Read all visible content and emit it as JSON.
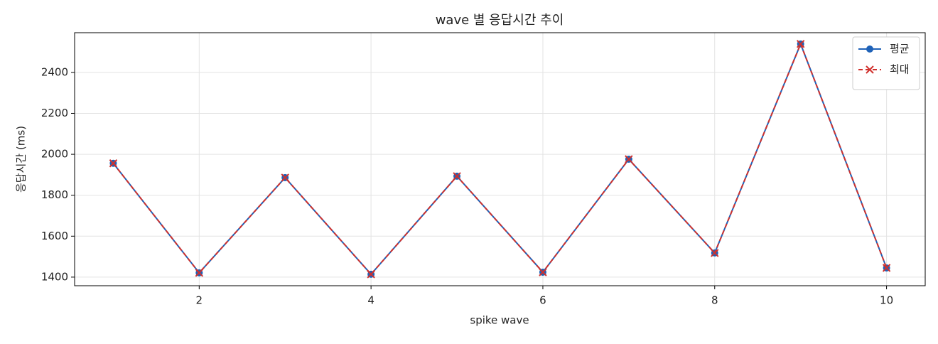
{
  "chart_data": {
    "type": "line",
    "title": "wave 별 응답시간 추이",
    "xlabel": "spike wave",
    "ylabel": "응답시간 (ms)",
    "x": [
      1,
      2,
      3,
      4,
      5,
      6,
      7,
      8,
      9,
      10
    ],
    "series": [
      {
        "name": "평균",
        "color": "#1f62b8",
        "marker": "o",
        "linestyle": "solid",
        "values": [
          1956,
          1421,
          1886,
          1414,
          1893,
          1424,
          1976,
          1518,
          2539,
          1445
        ]
      },
      {
        "name": "최대",
        "color": "#d0312d",
        "marker": "x",
        "linestyle": "dashed",
        "values": [
          1956,
          1421,
          1886,
          1414,
          1893,
          1424,
          1976,
          1518,
          2539,
          1445
        ]
      }
    ],
    "xlim": [
      0.55,
      10.45
    ],
    "xticks": [
      2,
      4,
      6,
      8,
      10
    ],
    "ylim": [
      1358,
      2594
    ],
    "yticks": [
      1400,
      1600,
      1800,
      2000,
      2200,
      2400
    ],
    "grid": true,
    "legend": "upper right"
  }
}
